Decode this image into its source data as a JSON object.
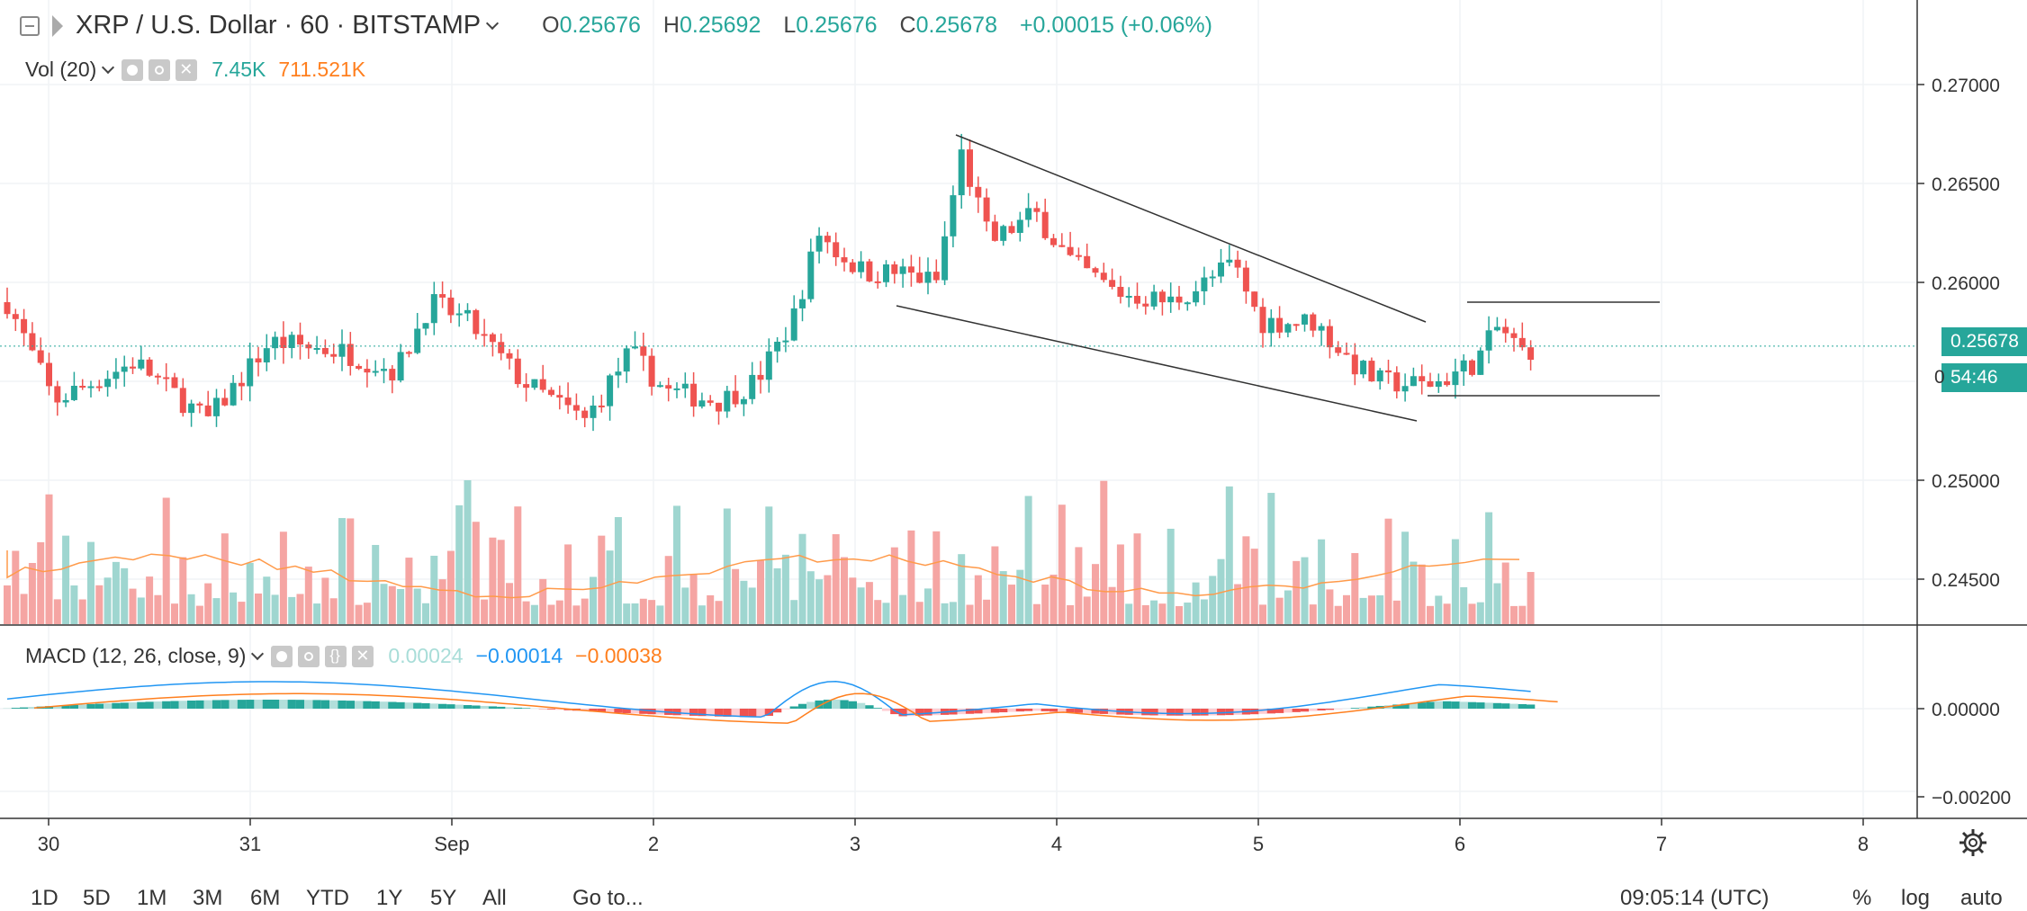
{
  "header": {
    "symbol": "XRP / U.S. Dollar · 60 · BITSTAMP",
    "ohlc": [
      {
        "key": "O",
        "value": "0.25676"
      },
      {
        "key": "H",
        "value": "0.25692"
      },
      {
        "key": "L",
        "value": "0.25676"
      },
      {
        "key": "C",
        "value": "0.25678"
      }
    ],
    "change": "+0.00015 (+0.06%)"
  },
  "volume_indicator": {
    "label": "Vol (20)",
    "value1": "7.45K",
    "value2": "711.521K"
  },
  "macd_indicator": {
    "label": "MACD (12, 26, close, 9)",
    "hist": "0.00024",
    "macd": "−0.00014",
    "signal": "−0.00038"
  },
  "price_axis": {
    "ticks": [
      "0.27000",
      "0.26500",
      "0.26000",
      "0.25000",
      "0.24500"
    ],
    "current_price": "0.25678",
    "countdown": "54:46",
    "clipped_tick": "0"
  },
  "macd_axis": {
    "ticks": [
      "0.00000",
      "−0.00200"
    ]
  },
  "time_axis": {
    "labels": [
      "30",
      "31",
      "Sep",
      "2",
      "3",
      "4",
      "5",
      "6",
      "7",
      "8"
    ]
  },
  "bottom_toolbar": {
    "ranges": [
      "1D",
      "5D",
      "1M",
      "3M",
      "6M",
      "YTD",
      "1Y",
      "5Y",
      "All"
    ],
    "goto": "Go to...",
    "clock": "09:05:14 (UTC)",
    "percent": "%",
    "log": "log",
    "auto": "auto"
  },
  "colors": {
    "up": "#26a69a",
    "down": "#ef5350",
    "macd_line": "#2196f3",
    "signal_line": "#ff7f1e",
    "vol_ma": "#ff9a4a"
  },
  "chart_data": {
    "type": "candlestick",
    "series": [
      {
        "name": "XRP / U.S. Dollar",
        "price_range": [
          0.2425,
          0.272
        ],
        "last_close": 0.25678
      }
    ],
    "trendlines": "descending wedge from Sep 3 to Sep 5 followed by horizontal range on Sep 6"
  }
}
